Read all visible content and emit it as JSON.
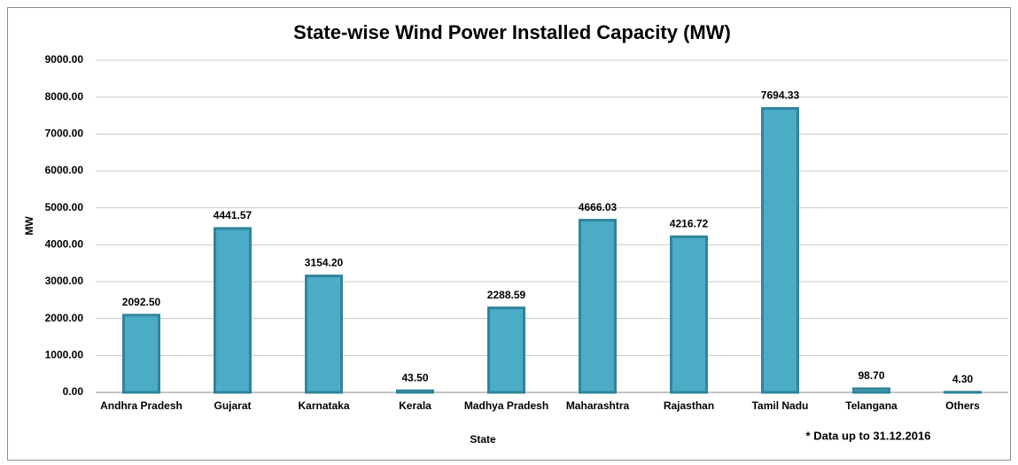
{
  "chart_data": {
    "type": "bar",
    "title": "State-wise Wind Power Installed Capacity (MW)",
    "x_label": "State",
    "y_label": "MW",
    "annotation": "* Data up to 31.12.2016",
    "categories": [
      "Andhra Pradesh",
      "Gujarat",
      "Karnataka",
      "Kerala",
      "Madhya Pradesh",
      "Maharashtra",
      "Rajasthan",
      "Tamil Nadu",
      "Telangana",
      "Others"
    ],
    "values": [
      2092.5,
      4441.57,
      3154.2,
      43.5,
      2288.59,
      4666.03,
      4216.72,
      7694.33,
      98.7,
      4.3
    ],
    "value_labels": [
      "2092.50",
      "4441.57",
      "3154.20",
      "43.50",
      "2288.59",
      "4666.03",
      "4216.72",
      "7694.33",
      "98.70",
      "4.30"
    ],
    "color": "#4bacc6",
    "edge_color": "#31849b",
    "ylim": [
      0,
      9000
    ],
    "yticks": [
      {
        "value": 0,
        "label": "0.00"
      },
      {
        "value": 1000,
        "label": "1000.00"
      },
      {
        "value": 2000,
        "label": "2000.00"
      },
      {
        "value": 3000,
        "label": "3000.00"
      },
      {
        "value": 4000,
        "label": "4000.00"
      },
      {
        "value": 5000,
        "label": "5000.00"
      },
      {
        "value": 6000,
        "label": "6000.00"
      },
      {
        "value": 7000,
        "label": "7000.00"
      },
      {
        "value": 8000,
        "label": "8000.00"
      },
      {
        "value": 9000,
        "label": "9000.00"
      }
    ],
    "grid": true
  }
}
